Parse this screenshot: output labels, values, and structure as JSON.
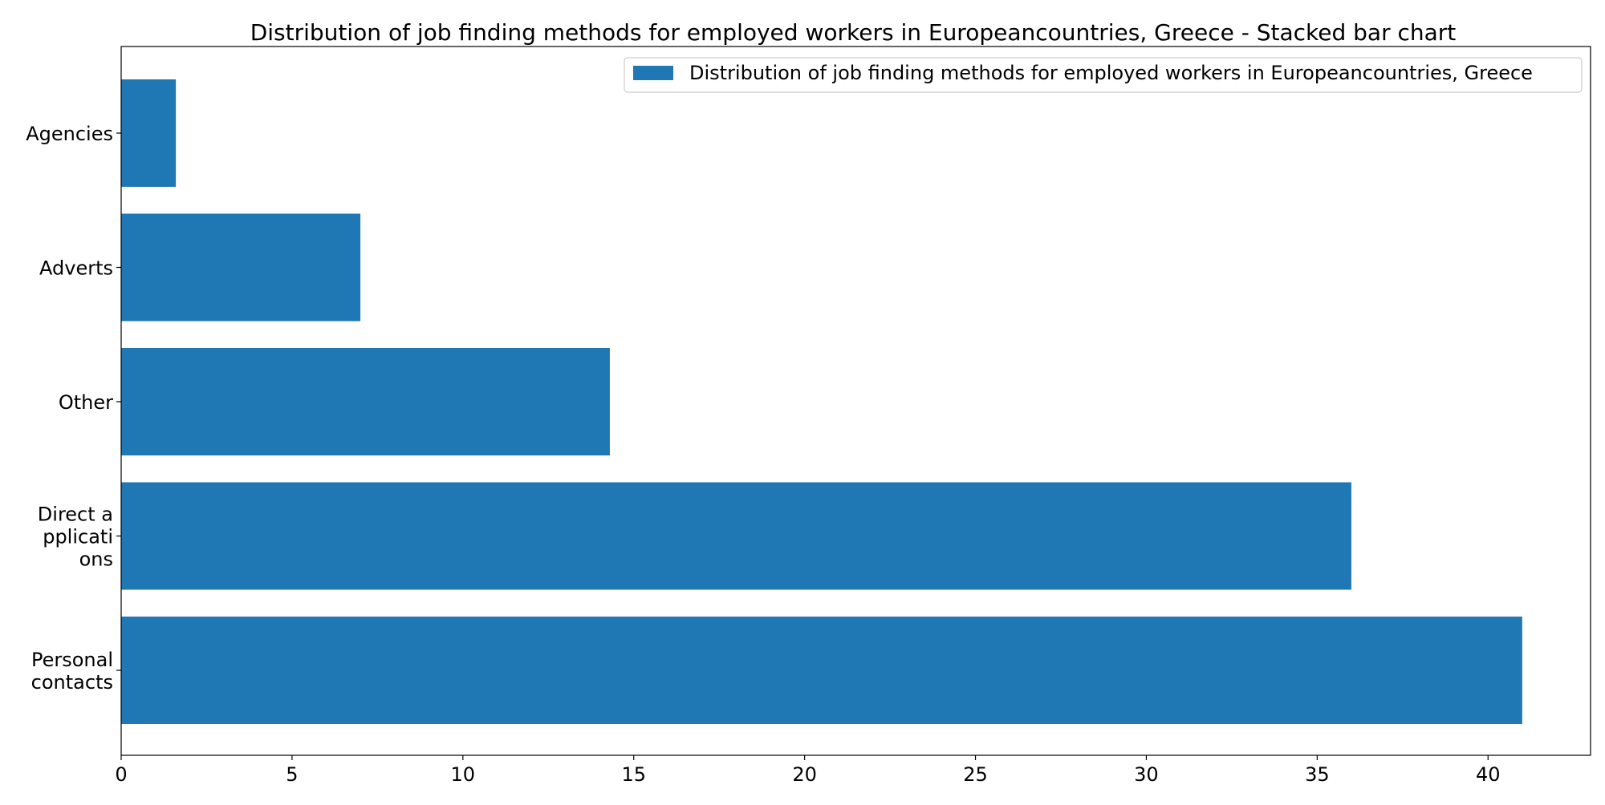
{
  "chart_data": {
    "type": "bar",
    "orientation": "horizontal",
    "title": "Distribution of job finding methods for employed workers in Europeancountries, Greece - Stacked bar chart",
    "categories": [
      [
        "Personal",
        "contacts"
      ],
      [
        "Direct a",
        "pplicati",
        "ons"
      ],
      [
        "Other"
      ],
      [
        "Adverts"
      ],
      [
        "Agencies"
      ]
    ],
    "series": [
      {
        "name": "Distribution of job finding methods for employed workers in Europeancountries, Greece",
        "color": "#1f77b4",
        "values": [
          41.0,
          36.0,
          14.3,
          7.0,
          1.6
        ]
      }
    ],
    "xlim": [
      0,
      43
    ],
    "x_ticks": [
      0,
      5,
      10,
      15,
      20,
      25,
      30,
      35,
      40
    ],
    "xlabel": "",
    "ylabel": "",
    "grid": false,
    "legend_position": "top-right"
  }
}
